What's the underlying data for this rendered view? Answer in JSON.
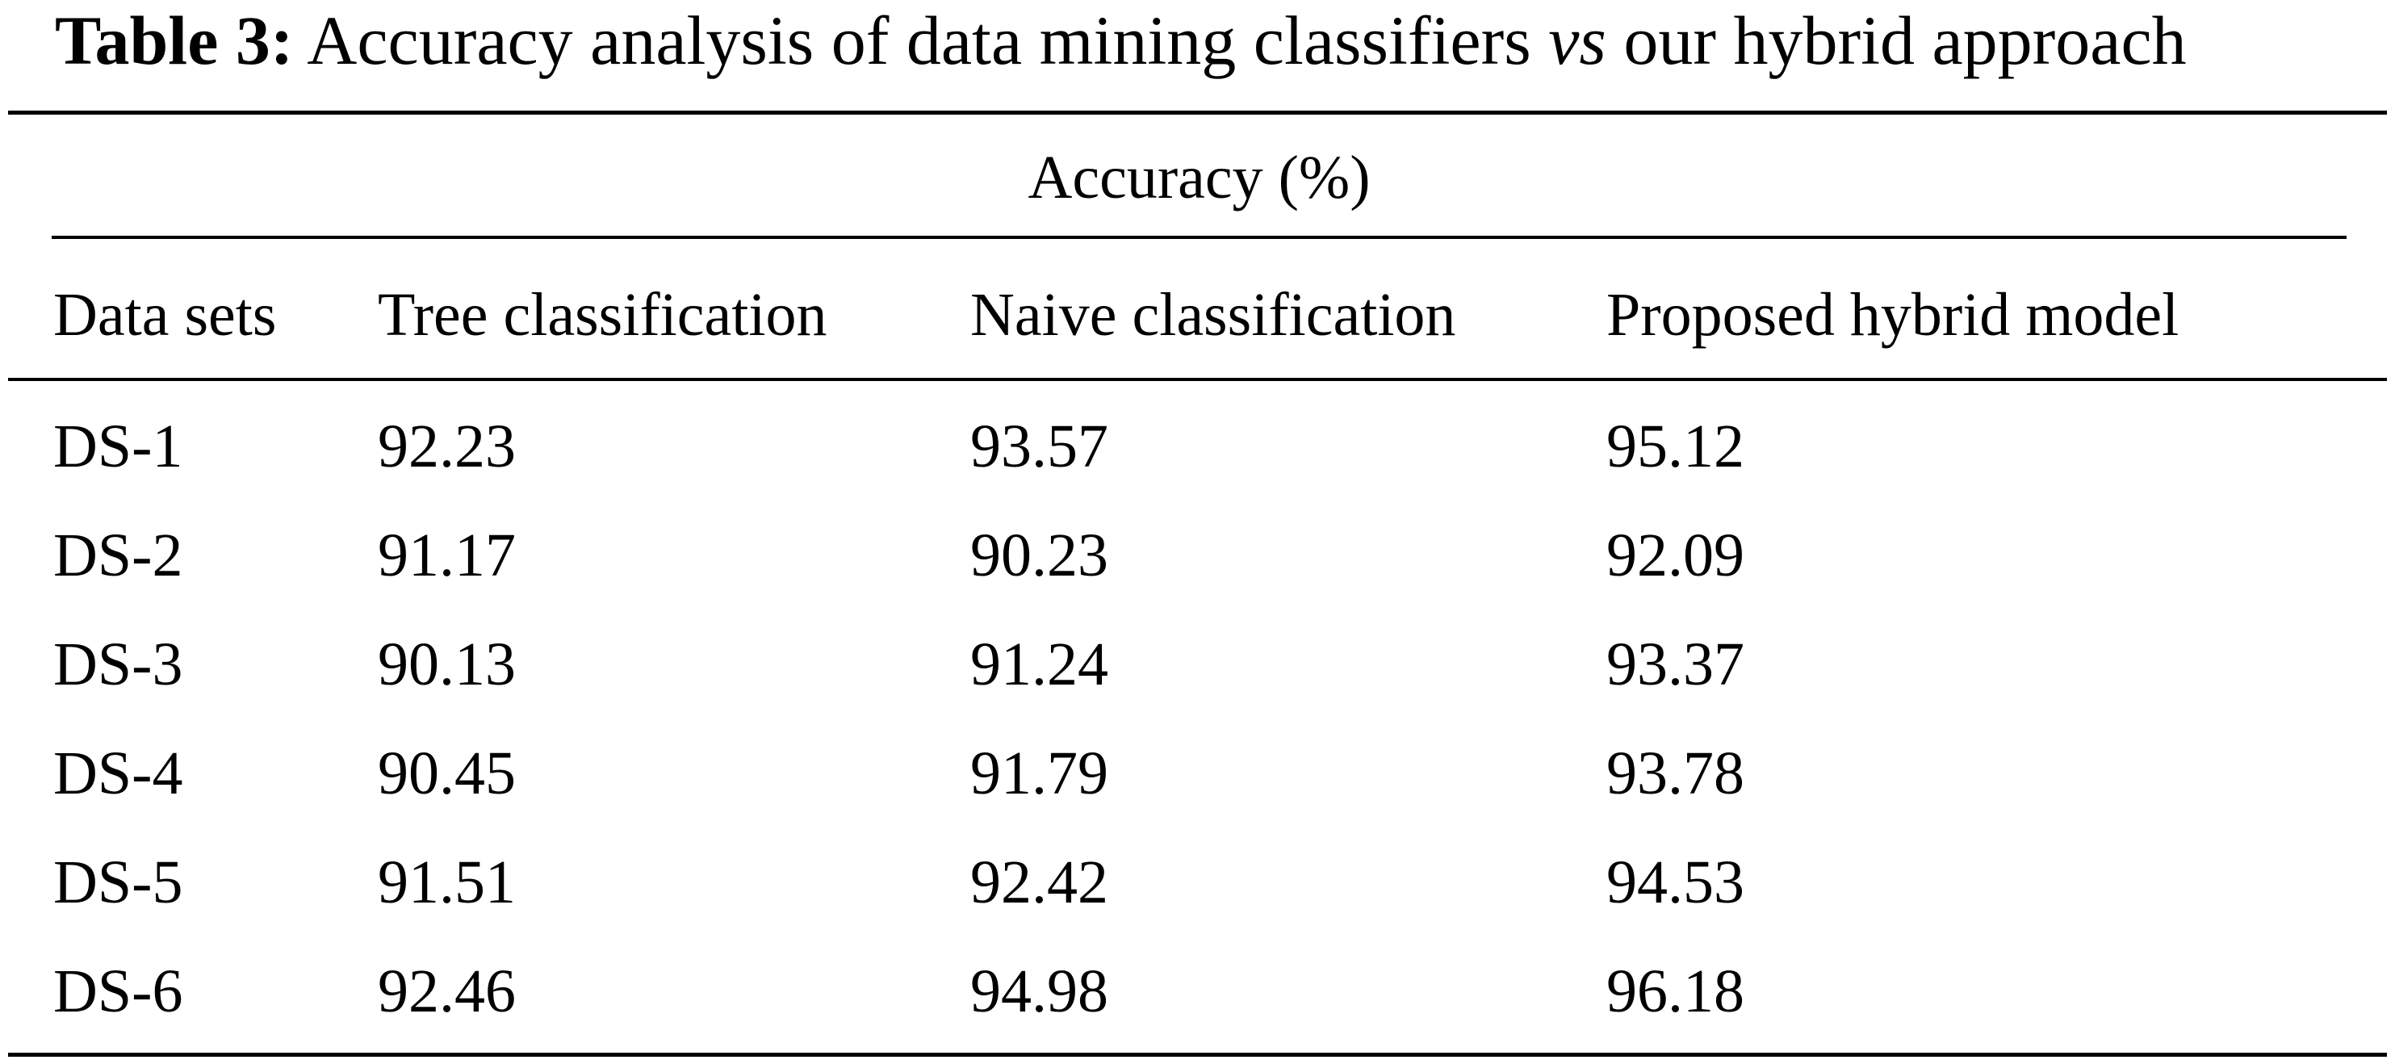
{
  "caption": {
    "label": "Table 3:",
    "text_before": " Accuracy analysis of data mining classifiers ",
    "italic": "vs",
    "text_after": " our hybrid approach"
  },
  "table": {
    "spanning_header": "Accuracy (%)",
    "columns": [
      "Data sets",
      "Tree classification",
      "Naive classification",
      "Proposed hybrid model"
    ],
    "rows": [
      [
        "DS-1",
        "92.23",
        "93.57",
        "95.12"
      ],
      [
        "DS-2",
        "91.17",
        "90.23",
        "92.09"
      ],
      [
        "DS-3",
        "90.13",
        "91.24",
        "93.37"
      ],
      [
        "DS-4",
        "90.45",
        "91.79",
        "93.78"
      ],
      [
        "DS-5",
        "91.51",
        "92.42",
        "94.53"
      ],
      [
        "DS-6",
        "92.46",
        "94.98",
        "96.18"
      ]
    ]
  }
}
